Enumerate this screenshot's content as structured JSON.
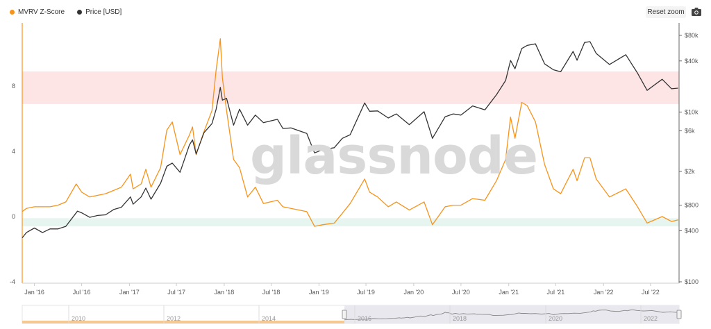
{
  "legend": {
    "series_a": "MVRV Z-Score",
    "series_b": "Price [USD]"
  },
  "toolbar": {
    "reset_zoom": "Reset zoom",
    "camera_icon": "camera-icon"
  },
  "watermark": "glassnode",
  "colors": {
    "zscore": "#f7931a",
    "price": "#333333",
    "red_band": "#fde5e5",
    "green_band": "#e6f5ef"
  },
  "chart_data": {
    "type": "line",
    "x_ticks": [
      "Jan '16",
      "Jul '16",
      "Jan '17",
      "Jul '17",
      "Jan '18",
      "Jul '18",
      "Jan '19",
      "Jul '19",
      "Jan '20",
      "Jul '20",
      "Jan '21",
      "Jul '21",
      "Jan '22",
      "Jul '22"
    ],
    "left_axis": {
      "ticks": [
        "-4",
        "0",
        "4",
        "8"
      ],
      "range": [
        -4,
        12
      ]
    },
    "right_axis": {
      "ticks": [
        "$100",
        "$400",
        "$800",
        "$2k",
        "$6k",
        "$10k",
        "$40k",
        "$80k"
      ],
      "scale": "log"
    },
    "bands": [
      {
        "axis": "left",
        "from": 6.9,
        "to": 8.9,
        "color": "#fde5e5"
      },
      {
        "axis": "left",
        "from": -0.6,
        "to": -0.1,
        "color": "#e6f5ef"
      }
    ],
    "navigator_labels": [
      "2010",
      "2012",
      "2014",
      "2016",
      "2018",
      "2020",
      "2022"
    ],
    "series": [
      {
        "name": "MVRV Z-Score",
        "axis": "left",
        "points": [
          [
            "2015-11-15",
            0.3
          ],
          [
            "2015-12-01",
            0.5
          ],
          [
            "2016-01-01",
            0.6
          ],
          [
            "2016-02-01",
            0.6
          ],
          [
            "2016-03-01",
            0.6
          ],
          [
            "2016-04-01",
            0.7
          ],
          [
            "2016-05-01",
            0.9
          ],
          [
            "2016-06-10",
            2.0
          ],
          [
            "2016-07-01",
            1.5
          ],
          [
            "2016-08-01",
            1.2
          ],
          [
            "2016-09-01",
            1.3
          ],
          [
            "2016-10-01",
            1.4
          ],
          [
            "2016-11-01",
            1.6
          ],
          [
            "2016-12-01",
            1.8
          ],
          [
            "2017-01-05",
            2.6
          ],
          [
            "2017-01-15",
            1.7
          ],
          [
            "2017-02-15",
            2.0
          ],
          [
            "2017-03-05",
            2.9
          ],
          [
            "2017-03-25",
            1.8
          ],
          [
            "2017-05-01",
            3.0
          ],
          [
            "2017-05-25",
            5.3
          ],
          [
            "2017-06-15",
            5.8
          ],
          [
            "2017-07-15",
            3.8
          ],
          [
            "2017-08-20",
            5.0
          ],
          [
            "2017-09-01",
            5.5
          ],
          [
            "2017-09-15",
            3.8
          ],
          [
            "2017-10-15",
            5.2
          ],
          [
            "2017-11-15",
            6.5
          ],
          [
            "2017-12-01",
            9.0
          ],
          [
            "2017-12-17",
            10.9
          ],
          [
            "2017-12-25",
            8.5
          ],
          [
            "2018-01-10",
            6.5
          ],
          [
            "2018-02-06",
            3.5
          ],
          [
            "2018-03-01",
            3.0
          ],
          [
            "2018-04-01",
            1.2
          ],
          [
            "2018-05-01",
            1.8
          ],
          [
            "2018-06-01",
            0.8
          ],
          [
            "2018-07-25",
            1.0
          ],
          [
            "2018-08-15",
            0.6
          ],
          [
            "2018-09-15",
            0.5
          ],
          [
            "2018-11-15",
            0.3
          ],
          [
            "2018-12-15",
            -0.6
          ],
          [
            "2019-01-15",
            -0.5
          ],
          [
            "2019-03-01",
            -0.4
          ],
          [
            "2019-04-01",
            0.2
          ],
          [
            "2019-05-01",
            0.8
          ],
          [
            "2019-06-26",
            2.3
          ],
          [
            "2019-07-15",
            1.5
          ],
          [
            "2019-08-15",
            1.2
          ],
          [
            "2019-09-25",
            0.6
          ],
          [
            "2019-10-26",
            0.9
          ],
          [
            "2019-12-15",
            0.4
          ],
          [
            "2020-02-10",
            0.9
          ],
          [
            "2020-03-13",
            -0.5
          ],
          [
            "2020-05-01",
            0.6
          ],
          [
            "2020-06-01",
            0.7
          ],
          [
            "2020-07-01",
            0.7
          ],
          [
            "2020-08-15",
            1.1
          ],
          [
            "2020-10-01",
            1.0
          ],
          [
            "2020-11-15",
            2.2
          ],
          [
            "2020-12-20",
            3.5
          ],
          [
            "2021-01-08",
            6.1
          ],
          [
            "2021-01-25",
            4.8
          ],
          [
            "2021-02-20",
            7.0
          ],
          [
            "2021-03-13",
            6.8
          ],
          [
            "2021-04-14",
            5.8
          ],
          [
            "2021-05-19",
            3.2
          ],
          [
            "2021-06-22",
            1.7
          ],
          [
            "2021-07-20",
            1.4
          ],
          [
            "2021-09-06",
            2.9
          ],
          [
            "2021-09-21",
            2.2
          ],
          [
            "2021-10-20",
            3.6
          ],
          [
            "2021-11-10",
            3.6
          ],
          [
            "2021-12-04",
            2.3
          ],
          [
            "2022-01-24",
            1.2
          ],
          [
            "2022-03-28",
            1.7
          ],
          [
            "2022-05-12",
            0.6
          ],
          [
            "2022-06-18",
            -0.4
          ],
          [
            "2022-08-15",
            0.0
          ],
          [
            "2022-09-20",
            -0.3
          ],
          [
            "2022-10-15",
            -0.2
          ]
        ]
      },
      {
        "name": "Price [USD]",
        "axis": "right",
        "points": [
          [
            "2015-11-15",
            330
          ],
          [
            "2015-12-01",
            380
          ],
          [
            "2016-01-01",
            430
          ],
          [
            "2016-02-01",
            380
          ],
          [
            "2016-03-01",
            420
          ],
          [
            "2016-04-01",
            420
          ],
          [
            "2016-05-01",
            450
          ],
          [
            "2016-06-15",
            680
          ],
          [
            "2016-07-01",
            650
          ],
          [
            "2016-08-01",
            575
          ],
          [
            "2016-09-01",
            605
          ],
          [
            "2016-10-01",
            615
          ],
          [
            "2016-11-01",
            710
          ],
          [
            "2016-12-01",
            755
          ],
          [
            "2017-01-05",
            1000
          ],
          [
            "2017-01-15",
            820
          ],
          [
            "2017-02-15",
            1000
          ],
          [
            "2017-03-05",
            1270
          ],
          [
            "2017-03-25",
            940
          ],
          [
            "2017-05-01",
            1450
          ],
          [
            "2017-05-25",
            2300
          ],
          [
            "2017-06-15",
            2500
          ],
          [
            "2017-07-15",
            1950
          ],
          [
            "2017-08-20",
            4100
          ],
          [
            "2017-09-01",
            4700
          ],
          [
            "2017-09-15",
            3200
          ],
          [
            "2017-10-15",
            5700
          ],
          [
            "2017-11-15",
            7300
          ],
          [
            "2017-12-01",
            10800
          ],
          [
            "2017-12-17",
            19500
          ],
          [
            "2017-12-25",
            13800
          ],
          [
            "2018-01-10",
            14500
          ],
          [
            "2018-02-06",
            7000
          ],
          [
            "2018-03-01",
            10800
          ],
          [
            "2018-04-01",
            7000
          ],
          [
            "2018-05-01",
            9200
          ],
          [
            "2018-06-01",
            7500
          ],
          [
            "2018-07-25",
            8200
          ],
          [
            "2018-08-15",
            6400
          ],
          [
            "2018-09-15",
            6500
          ],
          [
            "2018-11-15",
            5600
          ],
          [
            "2018-12-15",
            3300
          ],
          [
            "2019-01-15",
            3600
          ],
          [
            "2019-03-01",
            3800
          ],
          [
            "2019-04-01",
            4900
          ],
          [
            "2019-05-01",
            5400
          ],
          [
            "2019-06-26",
            12800
          ],
          [
            "2019-07-15",
            10200
          ],
          [
            "2019-08-15",
            10300
          ],
          [
            "2019-09-25",
            8500
          ],
          [
            "2019-10-26",
            9500
          ],
          [
            "2019-12-15",
            7100
          ],
          [
            "2020-02-10",
            10100
          ],
          [
            "2020-03-13",
            4900
          ],
          [
            "2020-05-01",
            8800
          ],
          [
            "2020-06-01",
            9500
          ],
          [
            "2020-07-01",
            9200
          ],
          [
            "2020-08-15",
            11800
          ],
          [
            "2020-10-01",
            10600
          ],
          [
            "2020-11-15",
            16000
          ],
          [
            "2020-12-20",
            23500
          ],
          [
            "2021-01-08",
            40500
          ],
          [
            "2021-01-25",
            32300
          ],
          [
            "2021-02-20",
            56000
          ],
          [
            "2021-03-13",
            61000
          ],
          [
            "2021-04-14",
            63500
          ],
          [
            "2021-05-19",
            37000
          ],
          [
            "2021-06-22",
            31500
          ],
          [
            "2021-07-20",
            29800
          ],
          [
            "2021-09-06",
            51700
          ],
          [
            "2021-09-21",
            40700
          ],
          [
            "2021-10-20",
            66000
          ],
          [
            "2021-11-10",
            67500
          ],
          [
            "2021-12-04",
            49000
          ],
          [
            "2022-01-24",
            36300
          ],
          [
            "2022-03-28",
            47400
          ],
          [
            "2022-05-12",
            28700
          ],
          [
            "2022-06-18",
            18000
          ],
          [
            "2022-08-15",
            24300
          ],
          [
            "2022-09-20",
            18800
          ],
          [
            "2022-10-15",
            19100
          ]
        ]
      }
    ]
  }
}
